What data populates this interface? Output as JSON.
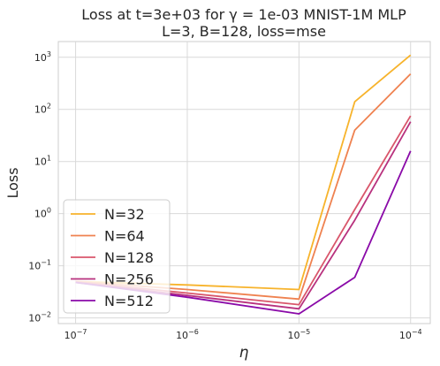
{
  "chart_data": {
    "type": "line",
    "title_line1": "Loss at t=3e+03 for γ = 1e-03 MNIST-1M MLP",
    "title_line2": "L=3, B=128, loss=mse",
    "xlabel": "η",
    "ylabel": "Loss",
    "xscale": "log",
    "yscale": "log",
    "xlim": [
      7e-08,
      0.00015
    ],
    "ylim": [
      0.0078,
      2000
    ],
    "xticks": [
      {
        "value": 1e-07,
        "base": "10",
        "exp": "−7"
      },
      {
        "value": 1e-06,
        "base": "10",
        "exp": "−6"
      },
      {
        "value": 1e-05,
        "base": "10",
        "exp": "−5"
      },
      {
        "value": 0.0001,
        "base": "10",
        "exp": "−4"
      }
    ],
    "yticks": [
      {
        "value": 0.01,
        "base": "10",
        "exp": "−2"
      },
      {
        "value": 0.1,
        "base": "10",
        "exp": "−1"
      },
      {
        "value": 1,
        "base": "10",
        "exp": "0"
      },
      {
        "value": 10,
        "base": "10",
        "exp": "1"
      },
      {
        "value": 100,
        "base": "10",
        "exp": "2"
      },
      {
        "value": 1000,
        "base": "10",
        "exp": "3"
      }
    ],
    "grid": true,
    "legend_position": "lower-left",
    "x": [
      1e-07,
      1e-06,
      1e-05,
      3.16e-05,
      0.0001
    ],
    "series": [
      {
        "name": "N=32",
        "color": "#f7b32b",
        "values": [
          0.05,
          0.043,
          0.035,
          140,
          1100
        ]
      },
      {
        "name": "N=64",
        "color": "#ef8250",
        "values": [
          0.05,
          0.035,
          0.023,
          40,
          480
        ]
      },
      {
        "name": "N=128",
        "color": "#d9566b",
        "values": [
          0.049,
          0.03,
          0.018,
          1.2,
          75
        ]
      },
      {
        "name": "N=256",
        "color": "#b8317e",
        "values": [
          0.048,
          0.027,
          0.015,
          0.75,
          58
        ]
      },
      {
        "name": "N=512",
        "color": "#8a0aa8",
        "values": [
          0.048,
          0.025,
          0.012,
          0.06,
          16
        ]
      }
    ]
  }
}
